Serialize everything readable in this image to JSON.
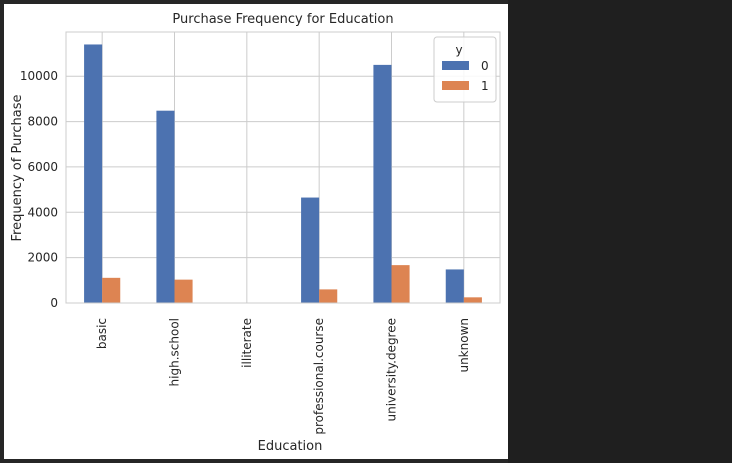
{
  "chart_data": {
    "type": "bar",
    "title": "Purchase Frequency for Education",
    "xlabel": "Education",
    "ylabel": "Frequency of Purchase",
    "categories": [
      "basic",
      "high.school",
      "illiterate",
      "professional.course",
      "university.degree",
      "unknown"
    ],
    "series": [
      {
        "name": "0",
        "color": "#4c72b0",
        "values": [
          11400,
          8480,
          14,
          4650,
          10500,
          1480
        ]
      },
      {
        "name": "1",
        "color": "#dd8452",
        "values": [
          1110,
          1030,
          4,
          600,
          1670,
          250
        ]
      }
    ],
    "ylim": [
      0,
      11950
    ],
    "yticks": [
      0,
      2000,
      4000,
      6000,
      8000,
      10000
    ],
    "legend": {
      "title": "y",
      "placement": "top-right"
    },
    "grid": true
  }
}
